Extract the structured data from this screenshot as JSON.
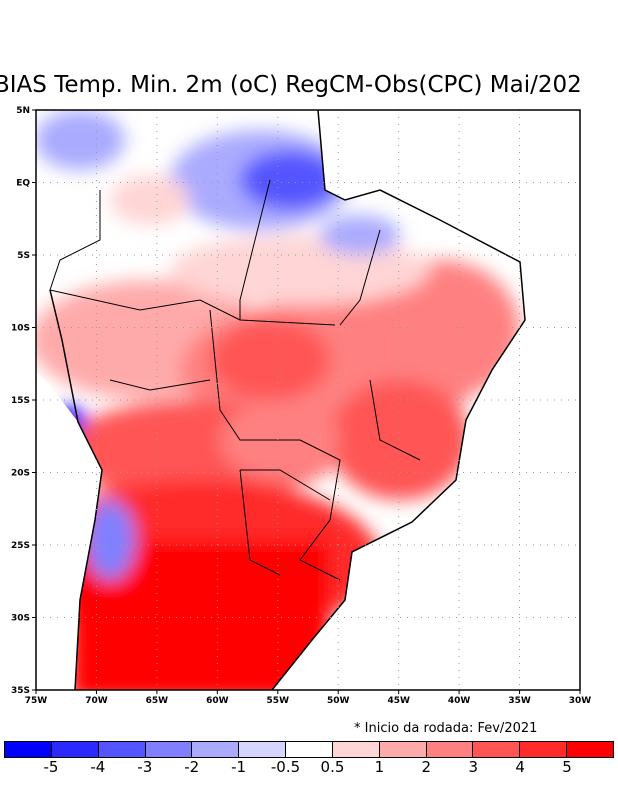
{
  "title": "BIAS Temp. Min. 2m (oC) RegCM-Obs(CPC) Mai/202",
  "note": "* Inicio da rodada: Fev/2021",
  "map": {
    "lon_range": [
      -75,
      -30
    ],
    "lat_range": [
      -35,
      5
    ],
    "lon_ticks": [
      "75W",
      "70W",
      "65W",
      "60W",
      "55W",
      "50W",
      "45W",
      "40W",
      "35W",
      "30W"
    ],
    "lat_ticks": [
      "5N",
      "EQ",
      "5S",
      "10S",
      "15S",
      "20S",
      "25S",
      "30S",
      "35S"
    ]
  },
  "colorbar": {
    "colors": [
      "#0000ff",
      "#2a2aff",
      "#5555ff",
      "#8080ff",
      "#aaaaff",
      "#d5d5ff",
      "#ffffff",
      "#ffd5d5",
      "#ffaaaa",
      "#ff8080",
      "#ff5555",
      "#ff2a2a",
      "#ff0000"
    ],
    "labels": [
      "-5",
      "-4",
      "-3",
      "-2",
      "-1",
      "-0.5",
      "0.5",
      "1",
      "2",
      "3",
      "4",
      "5"
    ]
  }
}
